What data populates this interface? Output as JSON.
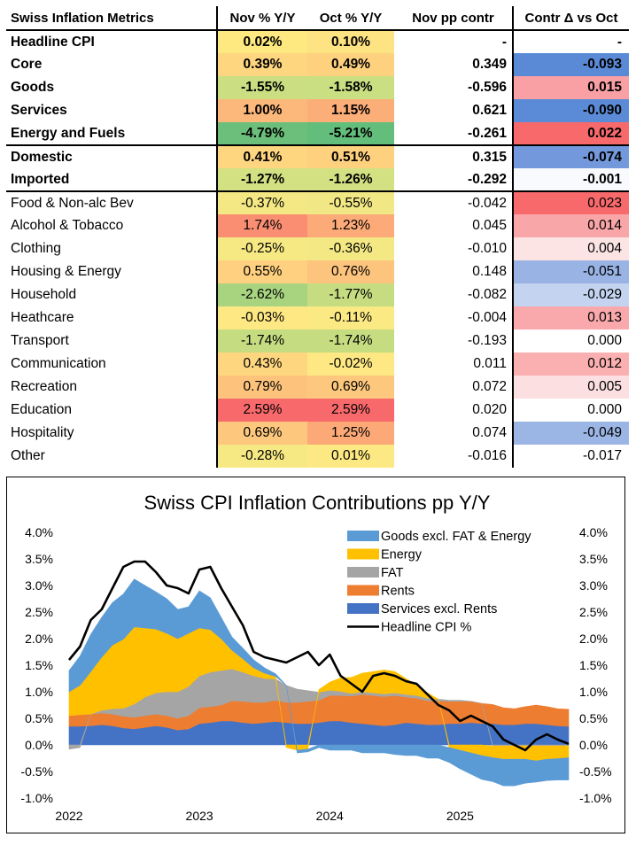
{
  "table": {
    "headers": {
      "label": "Swiss Inflation Metrics",
      "nov": "Nov % Y/Y",
      "oct": "Oct % Y/Y",
      "contr": "Nov pp contr",
      "delta": "Contr Δ vs Oct"
    },
    "rows": [
      {
        "label": "Headline CPI",
        "nov": "0.02%",
        "oct": "0.10%",
        "contr": "-",
        "delta": "-",
        "nov_bg": "#fde97f",
        "oct_bg": "#fee383",
        "delta_bg": "#ffffff",
        "bold": true,
        "group_end": false
      },
      {
        "label": "Core",
        "nov": "0.39%",
        "oct": "0.49%",
        "contr": "0.349",
        "delta": "-0.093",
        "nov_bg": "#fed680",
        "oct_bg": "#fed17f",
        "delta_bg": "#5a8ad6",
        "bold": true,
        "group_end": false
      },
      {
        "label": "Goods",
        "nov": "-1.55%",
        "oct": "-1.58%",
        "contr": "-0.596",
        "delta": "0.015",
        "nov_bg": "#cbdf82",
        "oct_bg": "#cadf82",
        "delta_bg": "#f8a0a4",
        "bold": true,
        "group_end": false
      },
      {
        "label": "Services",
        "nov": "1.00%",
        "oct": "1.15%",
        "contr": "0.621",
        "delta": "-0.090",
        "nov_bg": "#fcb77a",
        "oct_bg": "#fcae79",
        "delta_bg": "#5b8bd6",
        "bold": true,
        "group_end": false
      },
      {
        "label": "Energy and Fuels",
        "nov": "-4.79%",
        "oct": "-5.21%",
        "contr": "-0.261",
        "delta": "0.022",
        "nov_bg": "#6cbf7b",
        "oct_bg": "#63be7b",
        "delta_bg": "#f8696b",
        "bold": true,
        "group_end": true
      },
      {
        "label": "Domestic",
        "nov": "0.41%",
        "oct": "0.51%",
        "contr": "0.315",
        "delta": "-0.074",
        "nov_bg": "#fed680",
        "oct_bg": "#fed17f",
        "delta_bg": "#7399dc",
        "bold": true,
        "group_end": false
      },
      {
        "label": "Imported",
        "nov": "-1.27%",
        "oct": "-1.26%",
        "contr": "-0.292",
        "delta": "-0.001",
        "nov_bg": "#d3e182",
        "oct_bg": "#d3e182",
        "delta_bg": "#f9fafe",
        "bold": true,
        "group_end": true
      },
      {
        "label": "Food & Non-alc Bev",
        "nov": "-0.37%",
        "oct": "-0.55%",
        "contr": "-0.042",
        "delta": "0.023",
        "nov_bg": "#f3e884",
        "oct_bg": "#f1e784",
        "delta_bg": "#f8696b",
        "bold": false,
        "group_end": false
      },
      {
        "label": "Alcohol & Tobacco",
        "nov": "1.74%",
        "oct": "1.23%",
        "contr": "0.045",
        "delta": "0.014",
        "nov_bg": "#fa8e72",
        "oct_bg": "#fcaa78",
        "delta_bg": "#f9a6a9",
        "bold": false,
        "group_end": false
      },
      {
        "label": "Clothing",
        "nov": "-0.25%",
        "oct": "-0.36%",
        "contr": "-0.010",
        "delta": "0.004",
        "nov_bg": "#f6e984",
        "oct_bg": "#f3e884",
        "delta_bg": "#fce4e5",
        "bold": false,
        "group_end": false
      },
      {
        "label": "Housing & Energy",
        "nov": "0.55%",
        "oct": "0.76%",
        "contr": "0.148",
        "delta": "-0.051",
        "nov_bg": "#fed07f",
        "oct_bg": "#fdc47d",
        "delta_bg": "#98b3e4",
        "bold": false,
        "group_end": false
      },
      {
        "label": "Household",
        "nov": "-2.62%",
        "oct": "-1.77%",
        "contr": "-0.082",
        "delta": "-0.029",
        "nov_bg": "#a8d480",
        "oct_bg": "#c5dc81",
        "delta_bg": "#c3d3f0",
        "bold": false,
        "group_end": false
      },
      {
        "label": "Heathcare",
        "nov": "-0.03%",
        "oct": "-0.11%",
        "contr": "-0.004",
        "delta": "0.013",
        "nov_bg": "#fde883",
        "oct_bg": "#fbe983",
        "delta_bg": "#f9a9ac",
        "bold": false,
        "group_end": false
      },
      {
        "label": "Transport",
        "nov": "-1.74%",
        "oct": "-1.74%",
        "contr": "-0.193",
        "delta": "0.000",
        "nov_bg": "#c5dc81",
        "oct_bg": "#c5dc81",
        "delta_bg": "#ffffff",
        "bold": false,
        "group_end": false
      },
      {
        "label": "Communication",
        "nov": "0.43%",
        "oct": "-0.02%",
        "contr": "0.011",
        "delta": "0.012",
        "nov_bg": "#fed67f",
        "oct_bg": "#fde883",
        "delta_bg": "#faafb1",
        "bold": false,
        "group_end": false
      },
      {
        "label": "Recreation",
        "nov": "0.79%",
        "oct": "0.69%",
        "contr": "0.072",
        "delta": "0.005",
        "nov_bg": "#fdc37c",
        "oct_bg": "#fdc87d",
        "delta_bg": "#fcdfe0",
        "bold": false,
        "group_end": false
      },
      {
        "label": "Education",
        "nov": "2.59%",
        "oct": "2.59%",
        "contr": "0.020",
        "delta": "0.000",
        "nov_bg": "#f8696b",
        "oct_bg": "#f8696b",
        "delta_bg": "#ffffff",
        "bold": false,
        "group_end": false
      },
      {
        "label": "Hospitality",
        "nov": "0.69%",
        "oct": "1.25%",
        "contr": "0.074",
        "delta": "-0.049",
        "nov_bg": "#fdc87d",
        "oct_bg": "#fca977",
        "delta_bg": "#9bb5e5",
        "bold": false,
        "group_end": false
      },
      {
        "label": "Other",
        "nov": "-0.28%",
        "oct": "0.01%",
        "contr": "-0.016",
        "delta": "-0.017",
        "nov_bg": "#f6e984",
        "oct_bg": "#fde983",
        "delta_bg": "#ffffff",
        "bold": false,
        "group_end": false
      }
    ]
  },
  "chart_data": {
    "type": "area",
    "title": "Swiss CPI Inflation Contributions pp Y/Y",
    "xlabel": "",
    "ylabel": "",
    "ylim": [
      -1.0,
      4.0
    ],
    "y_ticks": [
      "4.0%",
      "3.5%",
      "3.0%",
      "2.5%",
      "2.0%",
      "1.5%",
      "1.0%",
      "0.5%",
      "0.0%",
      "-0.5%",
      "-1.0%"
    ],
    "y_tick_values": [
      4.0,
      3.5,
      3.0,
      2.5,
      2.0,
      1.5,
      1.0,
      0.5,
      0.0,
      -0.5,
      -1.0
    ],
    "x_start": "2022-01",
    "x_end": "2025-11",
    "x_tick_labels": [
      "2022",
      "2023",
      "2024",
      "2025"
    ],
    "x_tick_dates": [
      "2022-01",
      "2023-01",
      "2024-01",
      "2025-01"
    ],
    "legend_position": "top-right",
    "grid": false,
    "series": [
      {
        "name": "Services excl. Rents",
        "color": "#4472c4",
        "values": [
          0.35,
          0.35,
          0.36,
          0.38,
          0.36,
          0.32,
          0.3,
          0.33,
          0.36,
          0.33,
          0.28,
          0.3,
          0.4,
          0.42,
          0.45,
          0.45,
          0.42,
          0.4,
          0.42,
          0.44,
          0.42,
          0.4,
          0.4,
          0.42,
          0.45,
          0.45,
          0.42,
          0.4,
          0.38,
          0.36,
          0.38,
          0.42,
          0.4,
          0.38,
          0.38,
          0.4,
          0.4,
          0.42,
          0.4,
          0.4,
          0.38,
          0.38,
          0.4,
          0.4,
          0.38,
          0.36,
          0.35
        ]
      },
      {
        "name": "Rents",
        "color": "#ed7d31",
        "values": [
          0.2,
          0.22,
          0.22,
          0.22,
          0.22,
          0.22,
          0.22,
          0.22,
          0.22,
          0.22,
          0.22,
          0.25,
          0.3,
          0.3,
          0.3,
          0.38,
          0.4,
          0.4,
          0.38,
          0.4,
          0.38,
          0.4,
          0.42,
          0.42,
          0.48,
          0.48,
          0.5,
          0.55,
          0.55,
          0.55,
          0.55,
          0.48,
          0.48,
          0.45,
          0.45,
          0.42,
          0.42,
          0.4,
          0.38,
          0.36,
          0.32,
          0.3,
          0.32,
          0.35,
          0.34,
          0.32,
          0.32
        ]
      },
      {
        "name": "FAT",
        "color": "#a5a5a5",
        "values": [
          -0.08,
          -0.05,
          0.0,
          0.05,
          0.1,
          0.15,
          0.25,
          0.35,
          0.4,
          0.45,
          0.5,
          0.55,
          0.6,
          0.65,
          0.65,
          0.6,
          0.55,
          0.5,
          0.45,
          0.4,
          0.32,
          0.25,
          0.2,
          0.15,
          0.1,
          0.08,
          0.05,
          0.05,
          0.05,
          0.05,
          0.05,
          0.05,
          0.05,
          0.05,
          0.03,
          0.02,
          0.02,
          0.0,
          0.0,
          -0.02,
          -0.02,
          -0.02,
          -0.02,
          -0.02,
          -0.02,
          -0.02,
          -0.02
        ]
      },
      {
        "name": "Energy",
        "color": "#ffc000",
        "values": [
          0.45,
          0.55,
          0.8,
          1.0,
          1.2,
          1.3,
          1.45,
          1.3,
          1.2,
          1.1,
          1.0,
          1.0,
          0.9,
          0.8,
          0.6,
          0.35,
          0.25,
          0.15,
          0.1,
          0.05,
          -0.05,
          -0.1,
          -0.08,
          0.05,
          0.15,
          0.25,
          0.3,
          0.35,
          0.4,
          0.45,
          0.4,
          0.3,
          0.2,
          0.1,
          0.0,
          -0.05,
          -0.1,
          -0.15,
          -0.2,
          -0.22,
          -0.25,
          -0.25,
          -0.25,
          -0.28,
          -0.25,
          -0.24,
          -0.22
        ]
      },
      {
        "name": "Goods excl. FAT & Energy",
        "color": "#5b9bd5",
        "values": [
          0.4,
          0.55,
          0.7,
          0.75,
          0.8,
          0.85,
          0.9,
          0.8,
          0.7,
          0.65,
          0.55,
          0.5,
          0.7,
          0.6,
          0.4,
          0.25,
          0.2,
          0.15,
          0.1,
          0.05,
          0.0,
          -0.05,
          -0.05,
          -0.05,
          -0.1,
          -0.1,
          -0.1,
          -0.15,
          -0.15,
          -0.15,
          -0.18,
          -0.2,
          -0.2,
          -0.25,
          -0.25,
          -0.28,
          -0.35,
          -0.4,
          -0.45,
          -0.45,
          -0.5,
          -0.5,
          -0.45,
          -0.4,
          -0.4,
          -0.4,
          -0.42
        ]
      }
    ],
    "headline": {
      "name": "Headline CPI %",
      "color": "#000000",
      "values": [
        1.6,
        1.85,
        2.35,
        2.55,
        2.95,
        3.35,
        3.45,
        3.45,
        3.25,
        3.0,
        2.95,
        2.85,
        3.3,
        3.35,
        2.95,
        2.6,
        2.25,
        1.75,
        1.65,
        1.6,
        1.55,
        1.65,
        1.75,
        1.5,
        1.7,
        1.3,
        1.15,
        1.0,
        1.3,
        1.35,
        1.3,
        1.2,
        1.15,
        0.95,
        0.75,
        0.65,
        0.45,
        0.55,
        0.45,
        0.35,
        0.1,
        0.0,
        -0.1,
        0.1,
        0.2,
        0.1,
        0.02
      ]
    }
  }
}
